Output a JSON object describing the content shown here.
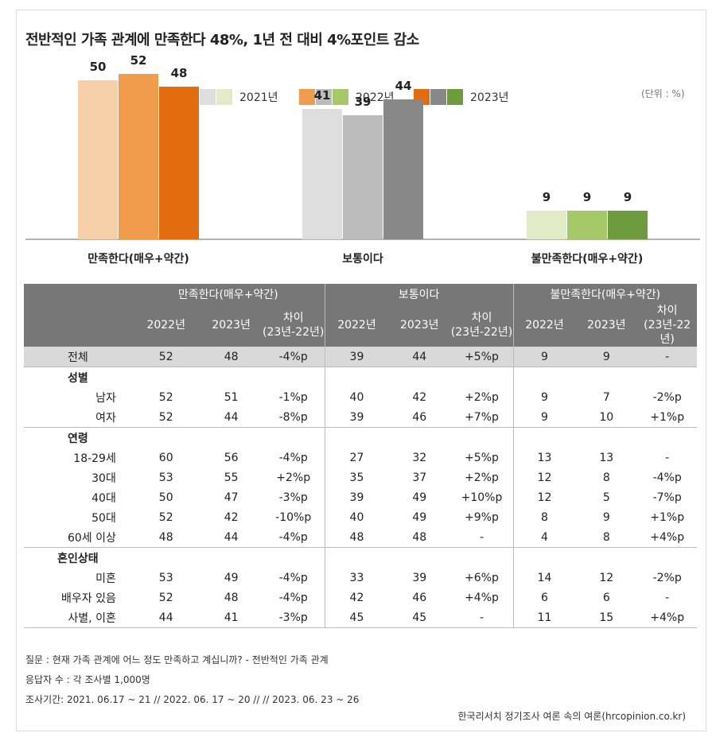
{
  "title": "전반적인 가족 관계에 만족한다 48%, 1년 전 대비 4%포인트 감소",
  "unit": "(단위 : %)",
  "legend": [
    {
      "label": "2021년",
      "colors": [
        "#f7cfa9",
        "#dedede",
        "#e1ecc7"
      ]
    },
    {
      "label": "2022년",
      "colors": [
        "#f19b4c",
        "#bcbcbc",
        "#a5c868"
      ]
    },
    {
      "label": "2023년",
      "colors": [
        "#e26d10",
        "#888888",
        "#6e9b3d"
      ]
    }
  ],
  "chart_data": {
    "type": "bar",
    "title": "전반적인 가족 관계에 만족한다 48%, 1년 전 대비 4%포인트 감소",
    "categories": [
      "만족한다(매우+약간)",
      "보통이다",
      "불만족한다(매우+약간)"
    ],
    "series": [
      {
        "name": "2021년",
        "values": [
          50,
          41,
          9
        ]
      },
      {
        "name": "2022년",
        "values": [
          52,
          39,
          9
        ]
      },
      {
        "name": "2023년",
        "values": [
          48,
          44,
          9
        ]
      }
    ],
    "colors": [
      [
        "#f7cfa9",
        "#f19b4c",
        "#e26d10"
      ],
      [
        "#dedede",
        "#bcbcbc",
        "#888888"
      ],
      [
        "#e1ecc7",
        "#a5c868",
        "#6e9b3d"
      ]
    ],
    "ylim": [
      0,
      60
    ],
    "grid": false,
    "legend_position": "top"
  },
  "table": {
    "groups": [
      "만족한다(매우+약간)",
      "보통이다",
      "불만족한다(매우+약간)"
    ],
    "col_year1": "2022년",
    "col_year2": "2023년",
    "col_diff": "차이",
    "col_diff_sub": "(23년-22년)",
    "total": {
      "label": "전체",
      "values": [
        "52",
        "48",
        "-4%p",
        "39",
        "44",
        "+5%p",
        "9",
        "9",
        "-"
      ]
    },
    "sections": [
      {
        "label": "성별",
        "rows": [
          {
            "label": "남자",
            "values": [
              "52",
              "51",
              "-1%p",
              "40",
              "42",
              "+2%p",
              "9",
              "7",
              "-2%p"
            ]
          },
          {
            "label": "여자",
            "values": [
              "52",
              "44",
              "-8%p",
              "39",
              "46",
              "+7%p",
              "9",
              "10",
              "+1%p"
            ]
          }
        ]
      },
      {
        "label": "연령",
        "rows": [
          {
            "label": "18-29세",
            "values": [
              "60",
              "56",
              "-4%p",
              "27",
              "32",
              "+5%p",
              "13",
              "13",
              "-"
            ]
          },
          {
            "label": "30대",
            "values": [
              "53",
              "55",
              "+2%p",
              "35",
              "37",
              "+2%p",
              "12",
              "8",
              "-4%p"
            ]
          },
          {
            "label": "40대",
            "values": [
              "50",
              "47",
              "-3%p",
              "39",
              "49",
              "+10%p",
              "12",
              "5",
              "-7%p"
            ]
          },
          {
            "label": "50대",
            "values": [
              "52",
              "42",
              "-10%p",
              "40",
              "49",
              "+9%p",
              "8",
              "9",
              "+1%p"
            ]
          },
          {
            "label": "60세 이상",
            "values": [
              "48",
              "44",
              "-4%p",
              "48",
              "48",
              "-",
              "4",
              "8",
              "+4%p"
            ]
          }
        ]
      },
      {
        "label": "혼인상태",
        "rows": [
          {
            "label": "미혼",
            "values": [
              "53",
              "49",
              "-4%p",
              "33",
              "39",
              "+6%p",
              "14",
              "12",
              "-2%p"
            ]
          },
          {
            "label": "배우자 있음",
            "values": [
              "52",
              "48",
              "-4%p",
              "42",
              "46",
              "+4%p",
              "6",
              "6",
              "-"
            ]
          },
          {
            "label": "사별, 이혼",
            "values": [
              "44",
              "41",
              "-3%p",
              "45",
              "45",
              "-",
              "11",
              "15",
              "+4%p"
            ]
          }
        ]
      }
    ]
  },
  "notes": [
    "질문 : 현재 가족 관계에 어느 정도 만족하고 계십니까? - 전반적인 가족 관계",
    "응답자 수 : 각 조사별 1,000명",
    "조사기간: 2021. 06.17 ~ 21 // 2022. 06. 17 ~ 20 // // 2023. 06. 23 ~ 26"
  ],
  "source": "한국리서치 정기조사 여론 속의 여론(hrcopinion.co.kr)"
}
